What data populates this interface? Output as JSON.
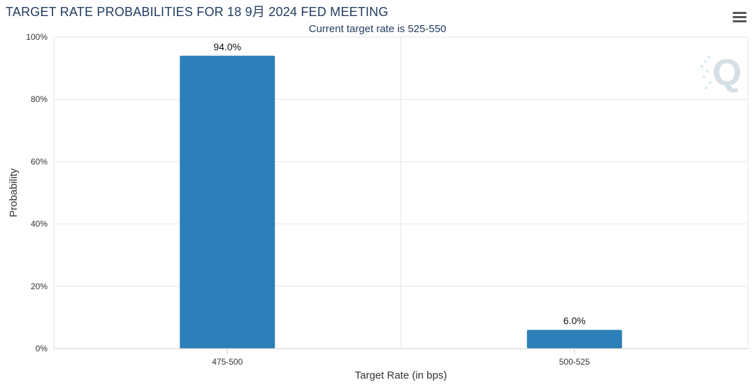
{
  "chart_data": {
    "type": "bar",
    "title": "TARGET RATE PROBABILITIES FOR 18 9月 2024 FED MEETING",
    "subtitle": "Current target rate is 525-550",
    "xlabel": "Target Rate (in bps)",
    "ylabel": "Probability",
    "categories": [
      "475-500",
      "500-525"
    ],
    "values": [
      94.0,
      6.0
    ],
    "data_labels": [
      "94.0%",
      "6.0%"
    ],
    "ylim": [
      0,
      100
    ],
    "yticks": [
      0,
      20,
      40,
      60,
      80,
      100
    ],
    "ytick_labels": [
      "0%",
      "20%",
      "40%",
      "60%",
      "80%",
      "100%"
    ],
    "grid": true,
    "legend": "none",
    "colors": {
      "bar": "#2c7fb8",
      "grid": "#e6e6e6",
      "axis": "#cccccc",
      "title": "#1f3a5f"
    }
  },
  "toolbar": {
    "menu_icon": "hamburger-menu-icon"
  },
  "watermark": {
    "icon": "q-logo-icon"
  }
}
